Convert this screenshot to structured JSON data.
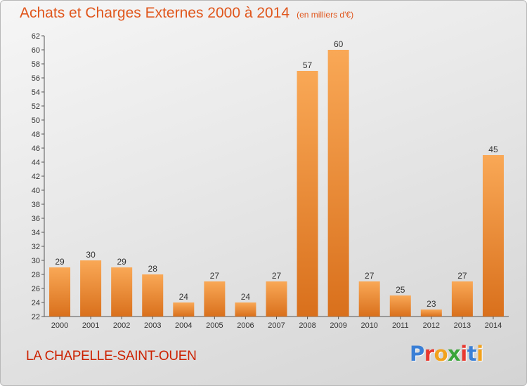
{
  "title": "Achats et Charges Externes 2000 à 2014",
  "unit_label": "(en milliers d'€)",
  "town": "LA CHAPELLE-SAINT-OUEN",
  "brand": "Proxiti",
  "brand_colors": [
    "#3a7fd6",
    "#e8382f",
    "#f2a11c",
    "#3aa53a",
    "#e8382f",
    "#3a7fd6",
    "#f2a11c"
  ],
  "colors": {
    "bar_light": "#f9a856",
    "bar_dark": "#d9701c",
    "title": "#e0561c",
    "town": "#cc2200"
  },
  "chart_data": {
    "type": "bar",
    "categories": [
      "2000",
      "2001",
      "2002",
      "2003",
      "2004",
      "2005",
      "2006",
      "2007",
      "2008",
      "2009",
      "2010",
      "2011",
      "2012",
      "2013",
      "2014"
    ],
    "values": [
      29,
      30,
      29,
      28,
      24,
      27,
      24,
      27,
      57,
      60,
      27,
      25,
      23,
      27,
      45
    ],
    "data_labels": [
      "29",
      "30",
      "29",
      "28",
      "24",
      "27",
      "24",
      "27",
      "57",
      "60",
      "27",
      "25",
      "23",
      "27",
      "45"
    ],
    "yticks": [
      "22",
      "24",
      "26",
      "28",
      "30",
      "32",
      "34",
      "36",
      "38",
      "40",
      "42",
      "44",
      "46",
      "48",
      "50",
      "52",
      "54",
      "56",
      "58",
      "60",
      "62"
    ],
    "ylim": [
      22,
      62
    ],
    "grid": false,
    "title": "Achats et Charges Externes 2000 à 2014",
    "xlabel": "",
    "ylabel": ""
  }
}
